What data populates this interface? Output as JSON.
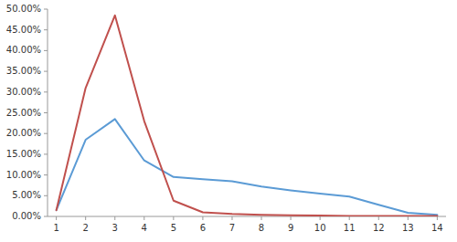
{
  "chart_data": {
    "type": "line",
    "x": [
      1,
      2,
      3,
      4,
      5,
      6,
      7,
      8,
      9,
      10,
      11,
      12,
      13,
      14
    ],
    "series": [
      {
        "color": "#5B9BD5",
        "values": [
          0.015,
          0.185,
          0.235,
          0.135,
          0.095,
          0.09,
          0.085,
          0.072,
          0.063,
          0.055,
          0.048,
          0.028,
          0.009,
          0.004
        ]
      },
      {
        "color": "#C0504D",
        "values": [
          0.015,
          0.31,
          0.485,
          0.23,
          0.038,
          0.01,
          0.006,
          0.004,
          0.003,
          0.002,
          0.001,
          0.001,
          0.001,
          0.001
        ]
      }
    ],
    "xlim": [
      0.7,
      14.3
    ],
    "xticks": [
      1,
      2,
      3,
      4,
      5,
      6,
      7,
      8,
      9,
      10,
      11,
      12,
      13,
      14
    ],
    "ylim": [
      0.0,
      0.5
    ],
    "yticks": [
      {
        "value": 0.0,
        "label": "0.00%"
      },
      {
        "value": 0.05,
        "label": "5.00%"
      },
      {
        "value": 0.1,
        "label": "10.00%"
      },
      {
        "value": 0.15,
        "label": "15.00%"
      },
      {
        "value": 0.2,
        "label": "20.00%"
      },
      {
        "value": 0.25,
        "label": "25.00%"
      },
      {
        "value": 0.3,
        "label": "30.00%"
      },
      {
        "value": 0.35,
        "label": "35.00%"
      },
      {
        "value": 0.4,
        "label": "40.00%"
      },
      {
        "value": 0.45,
        "label": "45.00%"
      },
      {
        "value": 0.5,
        "label": "50.00%"
      }
    ],
    "grid": false
  }
}
